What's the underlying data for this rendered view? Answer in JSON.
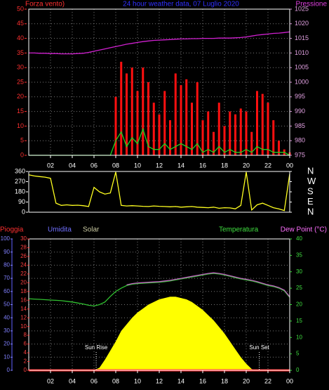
{
  "chart_data": [
    {
      "type": "line",
      "title": "24 hour weather data, 07 Luglio 2020",
      "ylabel": "Forza vento)",
      "y2label": "Pressione",
      "x": [
        0,
        0.5,
        1,
        1.5,
        2,
        2.5,
        3,
        3.5,
        4,
        4.5,
        5,
        5.5,
        6,
        6.5,
        7,
        7.5,
        8,
        8.5,
        9,
        9.5,
        10,
        10.5,
        11,
        11.5,
        12,
        12.5,
        13,
        13.5,
        14,
        14.5,
        15,
        15.5,
        16,
        16.5,
        17,
        17.5,
        18,
        18.5,
        19,
        19.5,
        20,
        20.5,
        21,
        21.5,
        22,
        22.5,
        23,
        23.5,
        24
      ],
      "xlim": [
        0,
        24
      ],
      "xticks": [
        {
          "value": 2,
          "label": "02"
        },
        {
          "value": 4,
          "label": "04"
        },
        {
          "value": 6,
          "label": "06"
        },
        {
          "value": 8,
          "label": "08"
        },
        10,
        12,
        14,
        16,
        18,
        20,
        22,
        {
          "value": 24,
          "label": "00"
        }
      ],
      "ylim": [
        0,
        50
      ],
      "yticks": [
        0,
        5,
        10,
        15,
        20,
        25,
        30,
        35,
        40,
        45,
        50
      ],
      "y2lim": [
        975,
        1025
      ],
      "y2ticks": [
        975,
        980,
        985,
        990,
        995,
        1000,
        1005,
        1010,
        1015,
        1020,
        1025
      ],
      "grid": "y",
      "series": [
        {
          "type": "bar",
          "color": "#ff1010",
          "axis": "y",
          "values": [
            0,
            0,
            0,
            0,
            0,
            0,
            0,
            0,
            0,
            0,
            0,
            0,
            0,
            0,
            0,
            0,
            20,
            32,
            28,
            30,
            22,
            30,
            25,
            18,
            14,
            22,
            12,
            28,
            24,
            26,
            18,
            25,
            12,
            15,
            8,
            18,
            10,
            15,
            14,
            16,
            15,
            8,
            22,
            21,
            18,
            12,
            5,
            2,
            1
          ]
        },
        {
          "type": "line",
          "color": "#20d020",
          "axis": "y",
          "values": [
            0,
            0,
            0,
            0,
            0,
            0,
            0,
            0,
            0,
            0,
            0,
            0,
            0,
            0,
            0,
            0,
            5,
            8,
            3,
            6,
            4,
            9,
            3,
            2,
            2,
            4,
            2,
            3,
            4,
            3,
            2,
            4,
            1,
            2,
            1,
            3,
            1,
            2,
            1,
            1,
            2,
            1,
            3,
            2,
            2,
            1,
            1,
            1,
            0
          ]
        },
        {
          "type": "line",
          "color": "#d020d0",
          "axis": "y2",
          "values": [
            1010.0,
            1010.0,
            1009.9,
            1009.9,
            1009.8,
            1009.8,
            1009.7,
            1009.7,
            1009.7,
            1009.8,
            1009.9,
            1010.2,
            1010.6,
            1011.0,
            1011.4,
            1011.8,
            1012.2,
            1012.6,
            1013.0,
            1013.3,
            1013.6,
            1013.9,
            1014.1,
            1014.3,
            1014.4,
            1014.5,
            1014.6,
            1014.7,
            1014.8,
            1014.8,
            1014.9,
            1014.9,
            1015.0,
            1015.0,
            1015.0,
            1015.1,
            1015.1,
            1015.1,
            1015.2,
            1015.3,
            1015.5,
            1015.8,
            1016.1,
            1016.3,
            1016.5,
            1016.7,
            1016.8,
            1017.0,
            1017.2
          ]
        }
      ]
    },
    {
      "type": "line",
      "x": [
        0,
        0.5,
        1,
        1.5,
        2,
        2.5,
        3,
        3.5,
        4,
        4.5,
        5,
        5.5,
        6,
        6.5,
        7,
        7.5,
        8,
        8.5,
        9,
        9.5,
        10,
        10.5,
        11,
        11.5,
        12,
        12.5,
        13,
        13.5,
        14,
        14.5,
        15,
        15.5,
        16,
        16.5,
        17,
        17.5,
        18,
        18.5,
        19,
        19.5,
        20,
        20.5,
        21,
        21.5,
        22,
        22.5,
        23,
        23.5,
        24
      ],
      "xlim": [
        0,
        24
      ],
      "ylim": [
        0,
        360
      ],
      "yticks": [
        0,
        90,
        180,
        270,
        360
      ],
      "y2lim": [
        0,
        360
      ],
      "y2ticks": [
        {
          "value": 360,
          "label": "N"
        },
        {
          "value": 270,
          "label": "W"
        },
        {
          "value": 180,
          "label": "S"
        },
        {
          "value": 90,
          "label": "E"
        },
        {
          "value": 0,
          "label": "N"
        }
      ],
      "series": [
        {
          "type": "line",
          "color": "#ffff20",
          "axis": "y",
          "values": [
            330,
            320,
            315,
            310,
            300,
            80,
            60,
            65,
            60,
            62,
            58,
            50,
            220,
            180,
            160,
            170,
            355,
            60,
            55,
            58,
            55,
            52,
            50,
            55,
            52,
            50,
            48,
            50,
            45,
            48,
            50,
            45,
            42,
            40,
            45,
            35,
            40,
            38,
            30,
            60,
            355,
            20,
            65,
            80,
            60,
            40,
            30,
            15,
            340
          ]
        }
      ]
    },
    {
      "type": "line",
      "ylabel": "Pioggia",
      "y3label": "Umidita",
      "y2label": "Temperatura",
      "x": [
        0,
        0.5,
        1,
        1.5,
        2,
        2.5,
        3,
        3.5,
        4,
        4.5,
        5,
        5.5,
        6,
        6.5,
        7,
        7.5,
        8,
        8.5,
        9,
        9.5,
        10,
        10.5,
        11,
        11.5,
        12,
        12.5,
        13,
        13.5,
        14,
        14.5,
        15,
        15.5,
        16,
        16.5,
        17,
        17.5,
        18,
        18.5,
        19,
        19.5,
        20,
        20.5,
        21,
        21.5,
        22,
        22.5,
        23,
        23.5,
        24
      ],
      "xlim": [
        0,
        24
      ],
      "xticks": [
        {
          "value": 2,
          "label": "02"
        },
        {
          "value": 4,
          "label": "04"
        },
        {
          "value": 6,
          "label": "06"
        },
        {
          "value": 8,
          "label": "08"
        },
        10,
        12,
        14,
        16,
        18,
        20,
        22,
        {
          "value": 24,
          "label": "00"
        }
      ],
      "ylim": [
        0,
        30
      ],
      "yticks": [
        0,
        2,
        4,
        6,
        8,
        10,
        12,
        14,
        16,
        18,
        20,
        22,
        24,
        26,
        28,
        30
      ],
      "y3lim": [
        0,
        100
      ],
      "y3ticks": [
        0,
        10,
        20,
        30,
        40,
        50,
        60,
        70,
        80,
        90,
        100
      ],
      "y2lim": [
        0,
        40
      ],
      "y2ticks": [
        0,
        5,
        10,
        15,
        20,
        25,
        30,
        35,
        40
      ],
      "grid": "y3",
      "annotations": [
        {
          "text": "Sun Rise",
          "x": 6.2
        },
        {
          "text": "Sun Set",
          "x": 21.2
        }
      ],
      "series": [
        {
          "name": "Solar",
          "type": "area",
          "color": "#ffff00",
          "axis": "y3",
          "values": [
            0,
            0,
            0,
            0,
            0,
            0,
            0,
            0,
            0,
            0,
            0,
            0,
            0,
            2,
            8,
            15,
            22,
            30,
            35,
            40,
            44,
            47,
            50,
            52,
            54,
            55,
            56,
            56,
            55,
            54,
            52,
            49,
            46,
            42,
            38,
            33,
            28,
            22,
            16,
            10,
            5,
            1,
            0,
            0,
            0,
            0,
            0,
            0,
            0
          ]
        },
        {
          "type": "line",
          "color": "#ff2020",
          "axis": "y",
          "values": [
            0,
            0,
            0,
            0,
            0,
            0,
            0,
            0,
            0,
            0,
            0,
            0,
            0,
            0,
            0,
            0,
            0,
            0,
            0,
            0,
            0,
            0,
            0,
            0,
            0,
            0,
            0,
            0,
            0,
            0,
            0,
            0,
            0,
            0,
            0,
            0,
            0,
            0,
            0,
            0,
            0,
            0,
            0,
            0,
            0,
            0,
            0,
            0,
            0
          ]
        },
        {
          "type": "line",
          "color": "#30c030",
          "axis": "y2",
          "values": [
            21.8,
            21.7,
            21.6,
            21.5,
            21.4,
            21.3,
            21.2,
            21,
            20.8,
            20.5,
            20.2,
            19.8,
            19.6,
            20,
            20.8,
            22.5,
            24,
            25,
            25.8,
            26.2,
            26.4,
            26.5,
            26.6,
            26.7,
            26.8,
            27,
            27.2,
            27.5,
            27.8,
            28.1,
            28.4,
            28.7,
            29,
            29.3,
            29.5,
            29.3,
            29,
            28.6,
            28.2,
            27.8,
            27.5,
            27.2,
            26.8,
            26.3,
            25.8,
            25.5,
            25,
            24.2,
            22.2
          ]
        },
        {
          "name": "Dew Point (°C)",
          "type": "line",
          "color": "#c060c0",
          "axis": "y2",
          "values": [
            null,
            null,
            null,
            null,
            null,
            null,
            null,
            null,
            null,
            null,
            null,
            null,
            null,
            null,
            null,
            null,
            null,
            null,
            26,
            26.4,
            26.6,
            26.7,
            26.8,
            26.9,
            27,
            27.2,
            27.4,
            27.7,
            28,
            28.3,
            28.6,
            28.9,
            29.2,
            29.5,
            29.7,
            29.5,
            29.2,
            28.8,
            28.4,
            28,
            27.7,
            27.4,
            27,
            26.5,
            26,
            25.7,
            25.2,
            24.4,
            22.4
          ]
        }
      ]
    }
  ]
}
